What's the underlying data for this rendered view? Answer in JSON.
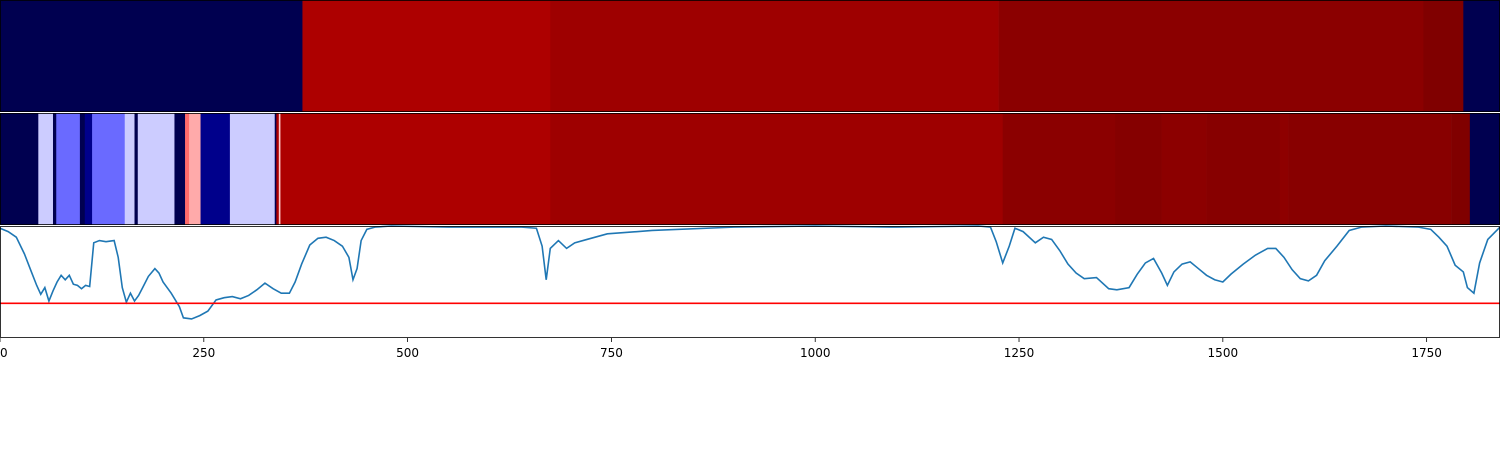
{
  "chart_data": {
    "type": "heatmap",
    "title": "",
    "xlabel": "",
    "ylabel": "",
    "xlim": [
      0,
      1840
    ],
    "x_ticks": [
      0,
      250,
      500,
      750,
      1000,
      1250,
      1500,
      1750
    ],
    "x_tick_labels": [
      "0",
      "250",
      "500",
      "750",
      "1000",
      "1250",
      "1500",
      "1750"
    ],
    "rows": [
      {
        "segments": [
          {
            "start": 0,
            "end": 371,
            "color": "#000050"
          },
          {
            "start": 371,
            "end": 675,
            "color": "#ad0000"
          },
          {
            "start": 675,
            "end": 1225,
            "color": "#9e0000"
          },
          {
            "start": 1225,
            "end": 1746,
            "color": "#8b0000"
          },
          {
            "start": 1746,
            "end": 1795,
            "color": "#800000"
          },
          {
            "start": 1795,
            "end": 1840,
            "color": "#000050"
          }
        ]
      },
      {
        "segments": [
          {
            "start": 0,
            "end": 47,
            "color": "#000050"
          },
          {
            "start": 47,
            "end": 65,
            "color": "#ccccff"
          },
          {
            "start": 65,
            "end": 69,
            "color": "#000050"
          },
          {
            "start": 69,
            "end": 98,
            "color": "#6a6aff"
          },
          {
            "start": 98,
            "end": 104,
            "color": "#000050"
          },
          {
            "start": 104,
            "end": 113,
            "color": "#00008b"
          },
          {
            "start": 113,
            "end": 153,
            "color": "#6a6aff"
          },
          {
            "start": 153,
            "end": 165,
            "color": "#ccccff"
          },
          {
            "start": 165,
            "end": 169,
            "color": "#000050"
          },
          {
            "start": 169,
            "end": 214,
            "color": "#ccccff"
          },
          {
            "start": 214,
            "end": 227,
            "color": "#000050"
          },
          {
            "start": 227,
            "end": 232,
            "color": "#ff6a6a"
          },
          {
            "start": 232,
            "end": 246,
            "color": "#ffaaaa"
          },
          {
            "start": 246,
            "end": 282,
            "color": "#00008b"
          },
          {
            "start": 282,
            "end": 337,
            "color": "#ccccff"
          },
          {
            "start": 337,
            "end": 339,
            "color": "#000050"
          },
          {
            "start": 339,
            "end": 342,
            "color": "#ad0000"
          },
          {
            "start": 342,
            "end": 344,
            "color": "#ffcccc"
          },
          {
            "start": 344,
            "end": 675,
            "color": "#ad0000"
          },
          {
            "start": 675,
            "end": 1230,
            "color": "#9e0000"
          },
          {
            "start": 1230,
            "end": 1368,
            "color": "#8b0000"
          },
          {
            "start": 1368,
            "end": 1425,
            "color": "#850000"
          },
          {
            "start": 1425,
            "end": 1480,
            "color": "#8c0000"
          },
          {
            "start": 1480,
            "end": 1570,
            "color": "#870000"
          },
          {
            "start": 1570,
            "end": 1580,
            "color": "#8e0000"
          },
          {
            "start": 1580,
            "end": 1780,
            "color": "#880000"
          },
          {
            "start": 1780,
            "end": 1803,
            "color": "#800000"
          },
          {
            "start": 1803,
            "end": 1808,
            "color": "#000050"
          },
          {
            "start": 1808,
            "end": 1840,
            "color": "#000050"
          }
        ]
      }
    ],
    "line": {
      "color": "#1f77b4",
      "ylim": [
        0,
        1
      ],
      "threshold": 0.31,
      "threshold_color": "#ff0000",
      "points": [
        [
          0,
          0.98
        ],
        [
          10,
          0.95
        ],
        [
          20,
          0.9
        ],
        [
          30,
          0.75
        ],
        [
          38,
          0.6
        ],
        [
          45,
          0.47
        ],
        [
          50,
          0.39
        ],
        [
          55,
          0.45
        ],
        [
          60,
          0.33
        ],
        [
          65,
          0.42
        ],
        [
          70,
          0.5
        ],
        [
          75,
          0.56
        ],
        [
          80,
          0.52
        ],
        [
          85,
          0.56
        ],
        [
          90,
          0.48
        ],
        [
          95,
          0.47
        ],
        [
          100,
          0.44
        ],
        [
          105,
          0.47
        ],
        [
          110,
          0.46
        ],
        [
          115,
          0.85
        ],
        [
          122,
          0.87
        ],
        [
          130,
          0.86
        ],
        [
          140,
          0.87
        ],
        [
          145,
          0.72
        ],
        [
          150,
          0.45
        ],
        [
          155,
          0.32
        ],
        [
          160,
          0.4
        ],
        [
          165,
          0.33
        ],
        [
          170,
          0.38
        ],
        [
          175,
          0.45
        ],
        [
          182,
          0.55
        ],
        [
          190,
          0.62
        ],
        [
          195,
          0.58
        ],
        [
          200,
          0.5
        ],
        [
          210,
          0.4
        ],
        [
          220,
          0.28
        ],
        [
          225,
          0.18
        ],
        [
          235,
          0.17
        ],
        [
          245,
          0.2
        ],
        [
          255,
          0.24
        ],
        [
          265,
          0.34
        ],
        [
          275,
          0.36
        ],
        [
          285,
          0.37
        ],
        [
          295,
          0.35
        ],
        [
          305,
          0.38
        ],
        [
          315,
          0.43
        ],
        [
          325,
          0.49
        ],
        [
          335,
          0.44
        ],
        [
          345,
          0.4
        ],
        [
          355,
          0.4
        ],
        [
          362,
          0.5
        ],
        [
          370,
          0.66
        ],
        [
          380,
          0.83
        ],
        [
          390,
          0.89
        ],
        [
          400,
          0.9
        ],
        [
          410,
          0.87
        ],
        [
          420,
          0.82
        ],
        [
          428,
          0.72
        ],
        [
          433,
          0.52
        ],
        [
          438,
          0.62
        ],
        [
          443,
          0.87
        ],
        [
          450,
          0.97
        ],
        [
          460,
          0.99
        ],
        [
          480,
          1.0
        ],
        [
          550,
          0.99
        ],
        [
          600,
          0.99
        ],
        [
          640,
          0.99
        ],
        [
          658,
          0.98
        ],
        [
          665,
          0.82
        ],
        [
          670,
          0.52
        ],
        [
          675,
          0.8
        ],
        [
          685,
          0.87
        ],
        [
          695,
          0.8
        ],
        [
          705,
          0.85
        ],
        [
          720,
          0.88
        ],
        [
          745,
          0.93
        ],
        [
          800,
          0.96
        ],
        [
          900,
          0.99
        ],
        [
          1000,
          1.0
        ],
        [
          1100,
          0.99
        ],
        [
          1200,
          1.0
        ],
        [
          1215,
          0.99
        ],
        [
          1222,
          0.86
        ],
        [
          1230,
          0.67
        ],
        [
          1238,
          0.82
        ],
        [
          1245,
          0.98
        ],
        [
          1255,
          0.95
        ],
        [
          1270,
          0.85
        ],
        [
          1280,
          0.9
        ],
        [
          1290,
          0.88
        ],
        [
          1300,
          0.78
        ],
        [
          1310,
          0.66
        ],
        [
          1320,
          0.58
        ],
        [
          1330,
          0.53
        ],
        [
          1345,
          0.54
        ],
        [
          1360,
          0.44
        ],
        [
          1370,
          0.43
        ],
        [
          1385,
          0.45
        ],
        [
          1395,
          0.57
        ],
        [
          1405,
          0.67
        ],
        [
          1415,
          0.71
        ],
        [
          1425,
          0.58
        ],
        [
          1432,
          0.47
        ],
        [
          1440,
          0.59
        ],
        [
          1450,
          0.66
        ],
        [
          1460,
          0.68
        ],
        [
          1470,
          0.62
        ],
        [
          1480,
          0.56
        ],
        [
          1490,
          0.52
        ],
        [
          1500,
          0.5
        ],
        [
          1510,
          0.57
        ],
        [
          1525,
          0.66
        ],
        [
          1540,
          0.74
        ],
        [
          1555,
          0.8
        ],
        [
          1565,
          0.8
        ],
        [
          1575,
          0.72
        ],
        [
          1585,
          0.61
        ],
        [
          1595,
          0.53
        ],
        [
          1605,
          0.51
        ],
        [
          1615,
          0.56
        ],
        [
          1625,
          0.69
        ],
        [
          1640,
          0.82
        ],
        [
          1655,
          0.96
        ],
        [
          1670,
          0.99
        ],
        [
          1700,
          1.0
        ],
        [
          1740,
          0.99
        ],
        [
          1755,
          0.97
        ],
        [
          1765,
          0.9
        ],
        [
          1775,
          0.82
        ],
        [
          1785,
          0.65
        ],
        [
          1795,
          0.59
        ],
        [
          1800,
          0.45
        ],
        [
          1808,
          0.4
        ],
        [
          1815,
          0.67
        ],
        [
          1825,
          0.88
        ],
        [
          1840,
          0.99
        ]
      ]
    }
  }
}
